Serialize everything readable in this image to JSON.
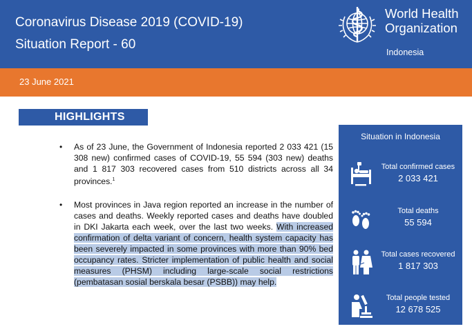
{
  "header": {
    "title": "Coronavirus Disease 2019 (COVID-19)",
    "subtitle": "Situation Report - 60",
    "org_name": "World Health Organization",
    "org_country": "Indonesia"
  },
  "date": "23 June 2021",
  "highlights": {
    "heading": "HIGHLIGHTS",
    "bullet1": "As of 23 June, the Government of Indonesia reported 2 033 421 (15 308 new) confirmed cases of COVID-19, 55 594 (303 new) deaths and 1 817 303 recovered cases from 510 districts across all 34 provinces.",
    "bullet1_note": "1",
    "bullet2_plain": "Most provinces in Java region reported an increase in the number of cases and deaths. Weekly reported cases and deaths have doubled in DKI Jakarta each week, over the last two weeks.",
    "bullet2_highlighted": "With increased confirmation of delta variant of concern, health system capacity has been severely impacted in some provinces with more than 90% bed occupancy rates. Stricter implementation of public health and social measures (PHSM) including large-scale social restrictions (pembatasan sosial berskala besar (PSBB)) may help."
  },
  "sidebar": {
    "title": "Situation in Indonesia",
    "stats": [
      {
        "label": "Total confirmed cases",
        "value": "2 033 421",
        "icon": "hospital-bed-icon"
      },
      {
        "label": "Total deaths",
        "value": "55 594",
        "icon": "footprints-icon"
      },
      {
        "label": "Total cases recovered",
        "value": "1 817 303",
        "icon": "people-icon"
      },
      {
        "label": "Total people tested",
        "value": "12 678 525",
        "icon": "microscope-icon"
      }
    ]
  },
  "colors": {
    "primary_blue": "#2e5aa6",
    "accent_orange": "#e8772e",
    "highlight": "#b9cbe6"
  }
}
